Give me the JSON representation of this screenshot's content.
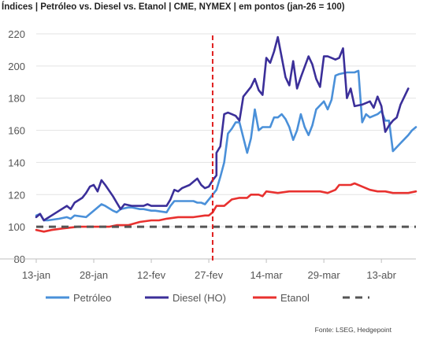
{
  "chart_data": {
    "type": "line",
    "title": "Índices | Petróleo vs. Diesel vs. Etanol | CME, NYMEX | em pontos (jan-26 = 100)",
    "source": "Fonte: LSEG, Hedgepoint",
    "x_ticks": [
      "13-jan",
      "28-jan",
      "12-fev",
      "27-fev",
      "14-mar",
      "29-mar",
      "13-abr"
    ],
    "x_range": [
      "13-jan",
      "22-abr"
    ],
    "y_ticks": [
      80,
      100,
      120,
      140,
      160,
      180,
      200,
      220
    ],
    "ylim": [
      80,
      220
    ],
    "vertical_marker": {
      "date": "28-fev",
      "color": "#e02020",
      "style": "dashed"
    },
    "legend_position": "bottom",
    "series": [
      {
        "name": "Petróleo",
        "color": "#4a90d9",
        "points": [
          [
            "13-jan",
            107
          ],
          [
            "14-jan",
            108
          ],
          [
            "15-jan",
            104
          ],
          [
            "16-jan",
            104
          ],
          [
            "19-jan",
            105
          ],
          [
            "21-jan",
            106
          ],
          [
            "22-jan",
            105
          ],
          [
            "23-jan",
            107
          ],
          [
            "26-jan",
            106
          ],
          [
            "27-jan",
            108
          ],
          [
            "28-jan",
            110
          ],
          [
            "30-jan",
            114
          ],
          [
            "31-jan",
            113
          ],
          [
            "2-fev",
            110
          ],
          [
            "3-fev",
            109
          ],
          [
            "4-fev",
            111
          ],
          [
            "6-fev",
            112
          ],
          [
            "7-fev",
            112
          ],
          [
            "9-fev",
            111
          ],
          [
            "10-fev",
            111
          ],
          [
            "12-fev",
            110
          ],
          [
            "13-fev",
            110
          ],
          [
            "16-fev",
            109
          ],
          [
            "17-fev",
            113
          ],
          [
            "18-fev",
            116
          ],
          [
            "19-fev",
            116
          ],
          [
            "23-fev",
            116
          ],
          [
            "24-fev",
            115
          ],
          [
            "25-fev",
            115
          ],
          [
            "26-fev",
            114
          ],
          [
            "27-fev",
            117
          ],
          [
            "28-fev",
            120
          ],
          [
            "1-mar",
            123
          ],
          [
            "2-mar",
            131
          ],
          [
            "3-mar",
            140
          ],
          [
            "4-mar",
            158
          ],
          [
            "5-mar",
            161
          ],
          [
            "6-mar",
            165
          ],
          [
            "7-mar",
            165
          ],
          [
            "9-mar",
            146
          ],
          [
            "10-mar",
            155
          ],
          [
            "11-mar",
            173
          ],
          [
            "12-mar",
            160
          ],
          [
            "13-mar",
            162
          ],
          [
            "15-mar",
            162
          ],
          [
            "16-mar",
            168
          ],
          [
            "17-mar",
            168
          ],
          [
            "18-mar",
            170
          ],
          [
            "19-mar",
            167
          ],
          [
            "20-mar",
            162
          ],
          [
            "21-mar",
            154
          ],
          [
            "22-mar",
            160
          ],
          [
            "23-mar",
            170
          ],
          [
            "24-mar",
            162
          ],
          [
            "25-mar",
            157
          ],
          [
            "26-mar",
            163
          ],
          [
            "27-mar",
            173
          ],
          [
            "29-mar",
            178
          ],
          [
            "30-mar",
            173
          ],
          [
            "31-mar",
            179
          ],
          [
            "1-abr",
            194
          ],
          [
            "2-abr",
            195
          ],
          [
            "4-abr",
            196
          ],
          [
            "5-abr",
            196
          ],
          [
            "6-abr",
            196
          ],
          [
            "7-abr",
            197
          ],
          [
            "8-abr",
            165
          ],
          [
            "9-abr",
            170
          ],
          [
            "10-abr",
            168
          ],
          [
            "12-abr",
            170
          ],
          [
            "13-abr",
            172
          ],
          [
            "14-abr",
            166
          ],
          [
            "15-abr",
            166
          ],
          [
            "16-abr",
            147
          ],
          [
            "18-abr",
            152
          ],
          [
            "20-abr",
            157
          ],
          [
            "21-abr",
            160
          ],
          [
            "22-abr",
            162
          ]
        ]
      },
      {
        "name": "Diesel (HO)",
        "color": "#3b2f99",
        "points": [
          [
            "13-jan",
            106
          ],
          [
            "14-jan",
            108
          ],
          [
            "15-jan",
            104
          ],
          [
            "17-jan",
            107
          ],
          [
            "19-jan",
            110
          ],
          [
            "21-jan",
            113
          ],
          [
            "22-jan",
            111
          ],
          [
            "23-jan",
            115
          ],
          [
            "25-jan",
            118
          ],
          [
            "26-jan",
            121
          ],
          [
            "27-jan",
            125
          ],
          [
            "28-jan",
            126
          ],
          [
            "29-jan",
            122
          ],
          [
            "30-jan",
            129
          ],
          [
            "31-jan",
            126
          ],
          [
            "2-fev",
            119
          ],
          [
            "3-fev",
            115
          ],
          [
            "4-fev",
            111
          ],
          [
            "5-fev",
            114
          ],
          [
            "7-fev",
            113
          ],
          [
            "9-fev",
            113
          ],
          [
            "10-fev",
            113
          ],
          [
            "11-fev",
            114
          ],
          [
            "12-fev",
            113
          ],
          [
            "16-fev",
            113
          ],
          [
            "17-fev",
            117
          ],
          [
            "18-fev",
            123
          ],
          [
            "19-fev",
            122
          ],
          [
            "20-fev",
            124
          ],
          [
            "22-fev",
            126
          ],
          [
            "23-fev",
            128
          ],
          [
            "24-fev",
            130
          ],
          [
            "25-fev",
            126
          ],
          [
            "26-fev",
            124
          ],
          [
            "27-fev",
            125
          ],
          [
            "28-fev",
            129
          ],
          [
            "29-fev",
            132
          ],
          [
            "1-mar",
            146
          ],
          [
            "2-mar",
            150
          ],
          [
            "3-mar",
            170
          ],
          [
            "4-mar",
            171
          ],
          [
            "5-mar",
            170
          ],
          [
            "6-mar",
            169
          ],
          [
            "7-mar",
            166
          ],
          [
            "8-mar",
            181
          ],
          [
            "10-mar",
            187
          ],
          [
            "11-mar",
            192
          ],
          [
            "12-mar",
            185
          ],
          [
            "13-mar",
            182
          ],
          [
            "14-mar",
            205
          ],
          [
            "15-mar",
            202
          ],
          [
            "16-mar",
            209
          ],
          [
            "17-mar",
            218
          ],
          [
            "19-mar",
            193
          ],
          [
            "20-mar",
            188
          ],
          [
            "21-mar",
            203
          ],
          [
            "22-mar",
            186
          ],
          [
            "23-mar",
            193
          ],
          [
            "25-mar",
            206
          ],
          [
            "26-mar",
            201
          ],
          [
            "27-mar",
            192
          ],
          [
            "28-mar",
            187
          ],
          [
            "29-mar",
            206
          ],
          [
            "30-mar",
            206
          ],
          [
            "31-mar",
            205
          ],
          [
            "1-abr",
            204
          ],
          [
            "2-abr",
            205
          ],
          [
            "3-abr",
            211
          ],
          [
            "4-abr",
            180
          ],
          [
            "5-abr",
            186
          ],
          [
            "6-abr",
            175
          ],
          [
            "8-abr",
            176
          ],
          [
            "10-abr",
            178
          ],
          [
            "11-abr",
            174
          ],
          [
            "12-abr",
            181
          ],
          [
            "13-abr",
            175
          ],
          [
            "14-abr",
            159
          ],
          [
            "15-abr",
            163
          ],
          [
            "16-abr",
            166
          ],
          [
            "17-abr",
            168
          ],
          [
            "18-abr",
            176
          ],
          [
            "20-abr",
            186
          ]
        ]
      },
      {
        "name": "Etanol",
        "color": "#e8312f",
        "points": [
          [
            "13-jan",
            98
          ],
          [
            "15-jan",
            97
          ],
          [
            "17-jan",
            98
          ],
          [
            "20-jan",
            99
          ],
          [
            "24-jan",
            100
          ],
          [
            "28-jan",
            100
          ],
          [
            "1-fev",
            100
          ],
          [
            "3-fev",
            101
          ],
          [
            "6-fev",
            101
          ],
          [
            "9-fev",
            103
          ],
          [
            "12-fev",
            104
          ],
          [
            "14-fev",
            104
          ],
          [
            "16-fev",
            105
          ],
          [
            "19-fev",
            106
          ],
          [
            "23-fev",
            106
          ],
          [
            "26-fev",
            107
          ],
          [
            "27-fev",
            107
          ],
          [
            "28-fev",
            109
          ],
          [
            "1-mar",
            113
          ],
          [
            "3-mar",
            113
          ],
          [
            "5-mar",
            117
          ],
          [
            "7-mar",
            118
          ],
          [
            "9-mar",
            118
          ],
          [
            "10-mar",
            120
          ],
          [
            "12-mar",
            120
          ],
          [
            "13-mar",
            119
          ],
          [
            "14-mar",
            122
          ],
          [
            "17-mar",
            121
          ],
          [
            "20-mar",
            122
          ],
          [
            "23-mar",
            122
          ],
          [
            "26-mar",
            122
          ],
          [
            "28-mar",
            122
          ],
          [
            "30-mar",
            121
          ],
          [
            "1-abr",
            123
          ],
          [
            "2-abr",
            126
          ],
          [
            "5-abr",
            126
          ],
          [
            "6-abr",
            127
          ],
          [
            "8-abr",
            125
          ],
          [
            "10-abr",
            123
          ],
          [
            "12-abr",
            122
          ],
          [
            "14-abr",
            122
          ],
          [
            "16-abr",
            121
          ],
          [
            "18-abr",
            121
          ],
          [
            "20-abr",
            121
          ],
          [
            "22-abr",
            122
          ]
        ]
      },
      {
        "name": "",
        "color": "#555555",
        "style": "dashed",
        "points": [
          [
            "13-jan",
            100
          ],
          [
            "22-abr",
            100
          ]
        ]
      }
    ]
  }
}
